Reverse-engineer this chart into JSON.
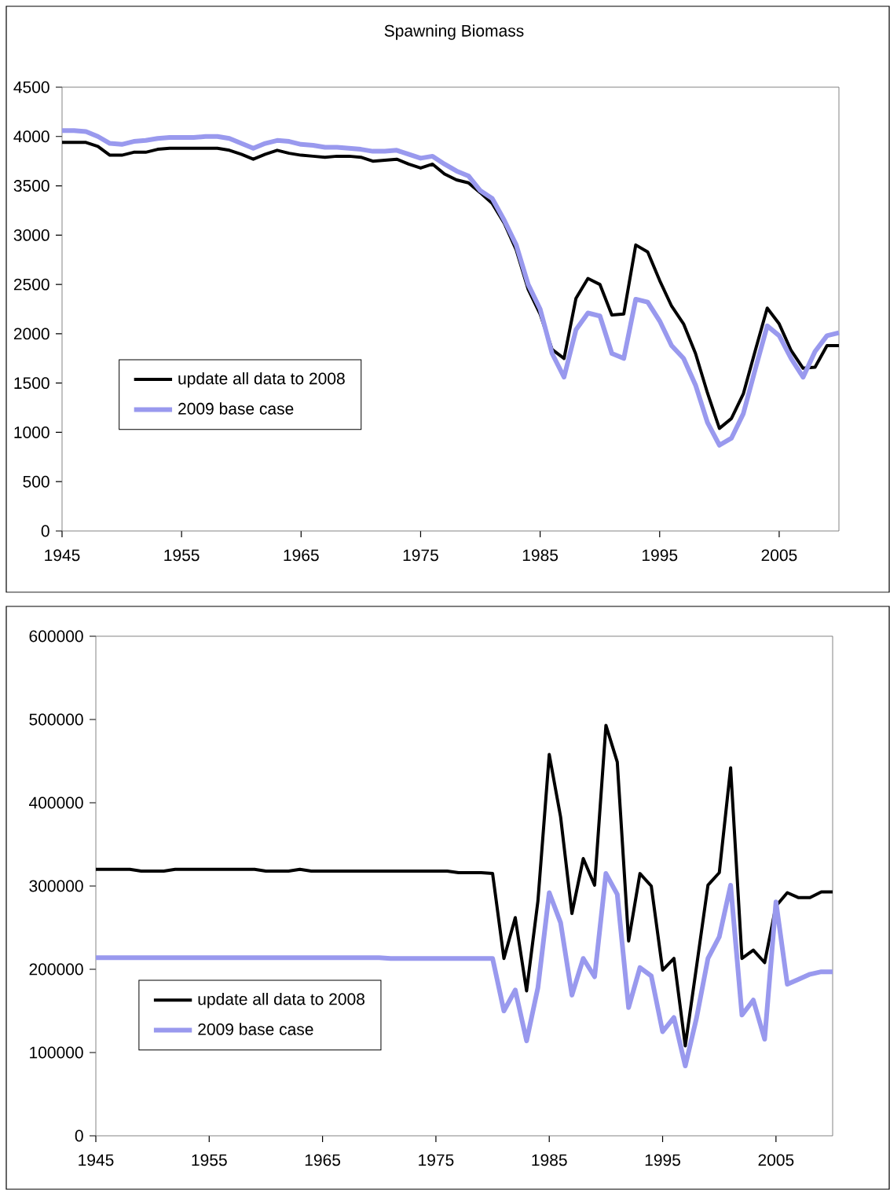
{
  "chart_data": [
    {
      "type": "line",
      "title": "Spawning Biomass",
      "x": [
        1945,
        1946,
        1947,
        1948,
        1949,
        1950,
        1951,
        1952,
        1953,
        1954,
        1955,
        1956,
        1957,
        1958,
        1959,
        1960,
        1961,
        1962,
        1963,
        1964,
        1965,
        1966,
        1967,
        1968,
        1969,
        1970,
        1971,
        1972,
        1973,
        1974,
        1975,
        1976,
        1977,
        1978,
        1979,
        1980,
        1981,
        1982,
        1983,
        1984,
        1985,
        1986,
        1987,
        1988,
        1989,
        1990,
        1991,
        1992,
        1993,
        1994,
        1995,
        1996,
        1997,
        1998,
        1999,
        2000,
        2001,
        2002,
        2003,
        2004,
        2005,
        2006,
        2007,
        2008,
        2009,
        2010
      ],
      "series": [
        {
          "name": "update all data to 2008",
          "color": "#000000",
          "values": [
            3940,
            3940,
            3940,
            3900,
            3810,
            3810,
            3840,
            3840,
            3870,
            3880,
            3880,
            3880,
            3880,
            3880,
            3860,
            3820,
            3770,
            3820,
            3860,
            3830,
            3810,
            3800,
            3790,
            3800,
            3800,
            3790,
            3750,
            3760,
            3770,
            3720,
            3680,
            3720,
            3620,
            3560,
            3530,
            3430,
            3320,
            3120,
            2850,
            2450,
            2200,
            1840,
            1750,
            2360,
            2560,
            2500,
            2190,
            2200,
            2900,
            2830,
            2540,
            2280,
            2100,
            1800,
            1400,
            1040,
            1140,
            1390,
            1830,
            2260,
            2100,
            1830,
            1650,
            1660,
            1880,
            1880
          ]
        },
        {
          "name": "2009 base case",
          "color": "#9999ee",
          "values": [
            4060,
            4060,
            4050,
            4000,
            3930,
            3920,
            3950,
            3960,
            3980,
            3990,
            3990,
            3990,
            4000,
            4000,
            3980,
            3930,
            3880,
            3930,
            3960,
            3950,
            3920,
            3910,
            3890,
            3890,
            3880,
            3870,
            3850,
            3850,
            3860,
            3820,
            3780,
            3800,
            3720,
            3650,
            3600,
            3450,
            3370,
            3150,
            2900,
            2500,
            2250,
            1800,
            1560,
            2040,
            2210,
            2180,
            1800,
            1750,
            2350,
            2320,
            2130,
            1880,
            1750,
            1480,
            1100,
            870,
            940,
            1190,
            1640,
            2080,
            1980,
            1750,
            1560,
            1820,
            1980,
            2010
          ]
        }
      ],
      "xlim": [
        1945,
        2010
      ],
      "xticks": [
        1945,
        1955,
        1965,
        1975,
        1985,
        1995,
        2005
      ],
      "ylim": [
        0,
        4500
      ],
      "yticks": [
        0,
        500,
        1000,
        1500,
        2000,
        2500,
        3000,
        3500,
        4000,
        4500
      ],
      "legend": "bottom left"
    },
    {
      "type": "line",
      "x": [
        1945,
        1946,
        1947,
        1948,
        1949,
        1950,
        1951,
        1952,
        1953,
        1954,
        1955,
        1956,
        1957,
        1958,
        1959,
        1960,
        1961,
        1962,
        1963,
        1964,
        1965,
        1966,
        1967,
        1968,
        1969,
        1970,
        1971,
        1972,
        1973,
        1974,
        1975,
        1976,
        1977,
        1978,
        1979,
        1980,
        1981,
        1982,
        1983,
        1984,
        1985,
        1986,
        1987,
        1988,
        1989,
        1990,
        1991,
        1992,
        1993,
        1994,
        1995,
        1996,
        1997,
        1998,
        1999,
        2000,
        2001,
        2002,
        2003,
        2004,
        2005,
        2006,
        2007,
        2008,
        2009,
        2010
      ],
      "series": [
        {
          "name": "update all data to 2008",
          "color": "#000000",
          "values": [
            320000,
            320000,
            320000,
            320000,
            318000,
            318000,
            318000,
            320000,
            320000,
            320000,
            320000,
            320000,
            320000,
            320000,
            320000,
            318000,
            318000,
            318000,
            320000,
            318000,
            318000,
            318000,
            318000,
            318000,
            318000,
            318000,
            318000,
            318000,
            318000,
            318000,
            318000,
            318000,
            316000,
            316000,
            316000,
            315000,
            213000,
            262000,
            174000,
            282000,
            458000,
            383000,
            267000,
            333000,
            301000,
            493000,
            449000,
            234000,
            315000,
            300000,
            199000,
            213000,
            108000,
            204000,
            301000,
            316000,
            442000,
            213000,
            223000,
            208000,
            276000,
            292000,
            286000,
            286000,
            293000,
            293000
          ]
        },
        {
          "name": "2009 base case",
          "color": "#9999ee",
          "values": [
            214000,
            214000,
            214000,
            214000,
            214000,
            214000,
            214000,
            214000,
            214000,
            214000,
            214000,
            214000,
            214000,
            214000,
            214000,
            214000,
            214000,
            214000,
            214000,
            214000,
            214000,
            214000,
            214000,
            214000,
            214000,
            214000,
            213000,
            213000,
            213000,
            213000,
            213000,
            213000,
            213000,
            213000,
            213000,
            213000,
            150000,
            175000,
            114000,
            178000,
            292000,
            256000,
            169000,
            213000,
            191000,
            315000,
            290000,
            154000,
            202000,
            192000,
            125000,
            142000,
            84000,
            142000,
            213000,
            239000,
            301000,
            145000,
            163000,
            116000,
            281000,
            182000,
            188000,
            194000,
            197000,
            197000
          ]
        }
      ],
      "xlim": [
        1945,
        2010
      ],
      "xticks": [
        1945,
        1955,
        1965,
        1975,
        1985,
        1995,
        2005
      ],
      "ylim": [
        0,
        600000
      ],
      "yticks": [
        0,
        100000,
        200000,
        300000,
        400000,
        500000,
        600000
      ],
      "legend": "bottom left"
    }
  ]
}
